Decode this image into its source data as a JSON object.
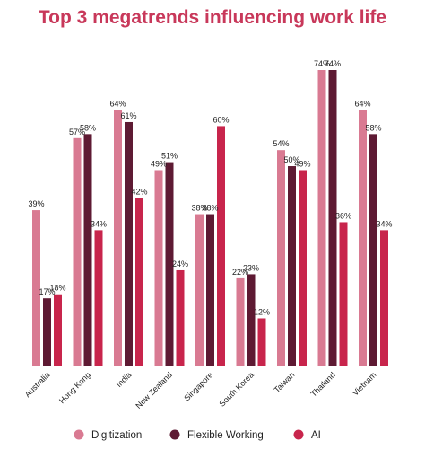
{
  "colors": {
    "title": "#c8385a",
    "digitization": "#d97a92",
    "flexible": "#5e1a33",
    "ai": "#c8254c"
  },
  "chart_data": {
    "type": "bar",
    "title": "Top 3 megatrends influencing work life",
    "categories": [
      "Australia",
      "Hong Kong",
      "India",
      "New Zealand",
      "Singapore",
      "South Korea",
      "Taiwan",
      "Thailand",
      "Vietnam"
    ],
    "series": [
      {
        "name": "Digitization",
        "color": "#d97a92",
        "values": [
          39,
          57,
          64,
          49,
          38,
          22,
          54,
          74,
          64
        ]
      },
      {
        "name": "Flexible Working",
        "color": "#5e1a33",
        "values": [
          17,
          58,
          61,
          51,
          38,
          23,
          50,
          74,
          58
        ]
      },
      {
        "name": "AI",
        "color": "#c8254c",
        "values": [
          18,
          34,
          42,
          24,
          60,
          12,
          49,
          36,
          34
        ]
      }
    ],
    "ylim": [
      0,
      74
    ],
    "value_suffix": "%",
    "legend_position": "bottom",
    "grid": false
  }
}
